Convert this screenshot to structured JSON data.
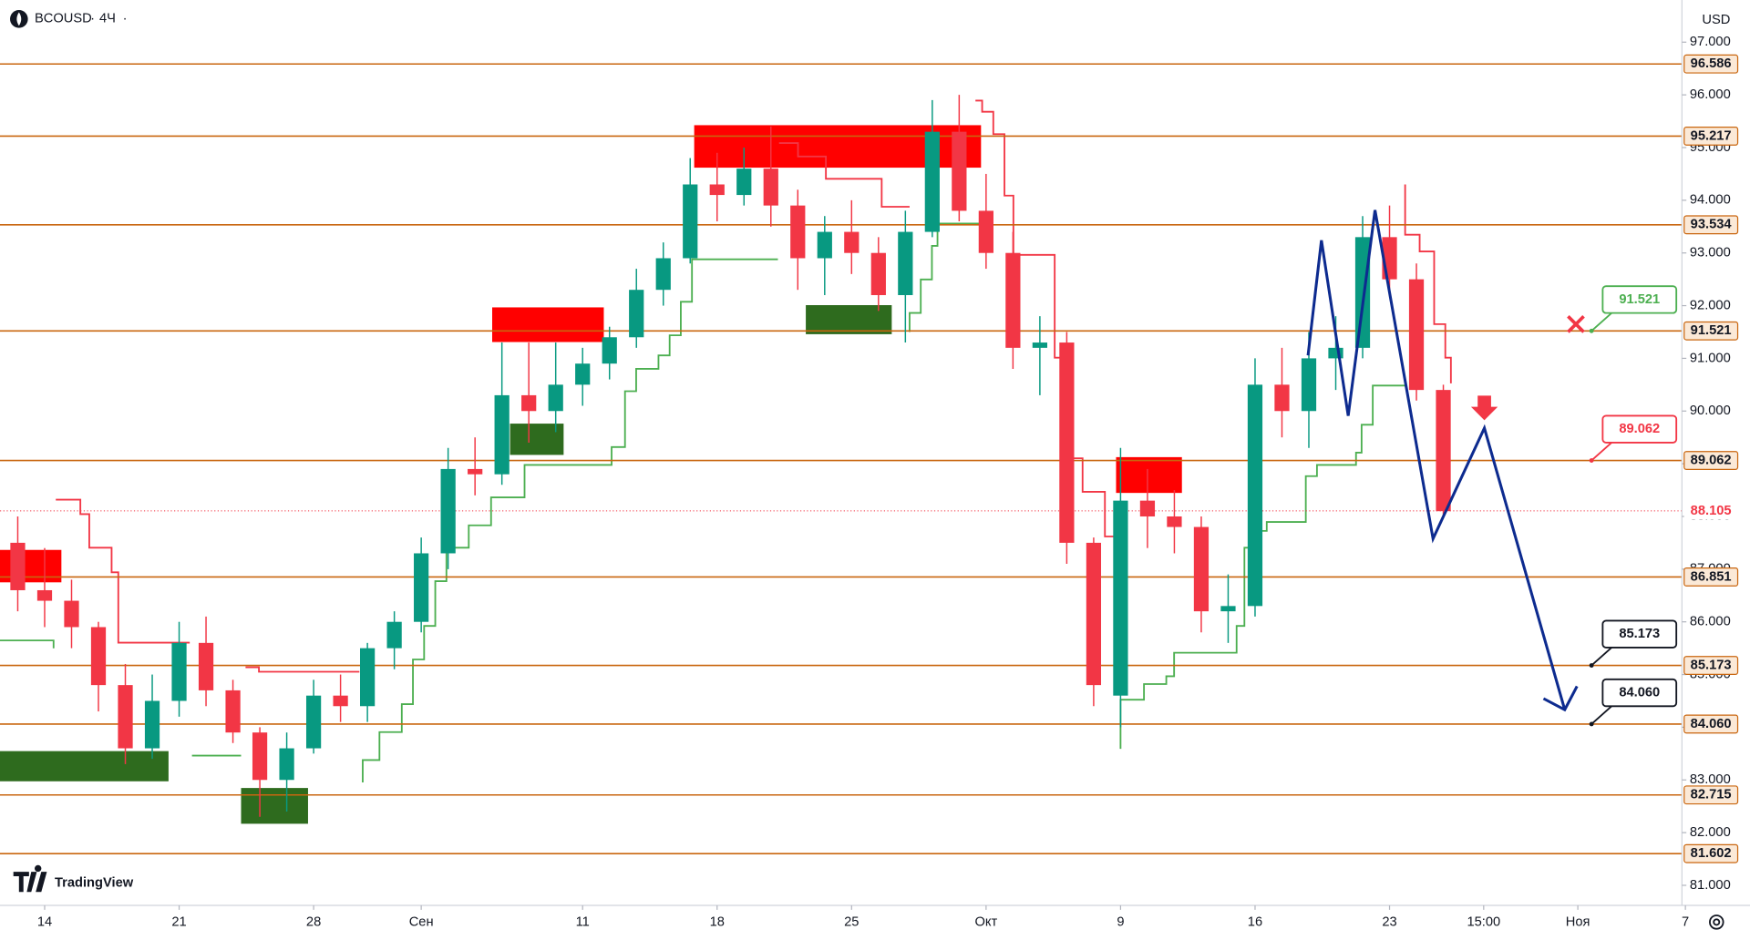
{
  "header": {
    "symbol": "BCOUSD",
    "interval": "4Ч",
    "currency": "USD",
    "brand": "TradingView"
  },
  "chart_data": {
    "type": "candlestick",
    "x": [
      -1,
      0,
      1,
      2,
      3,
      4,
      5,
      6,
      7,
      8,
      9,
      10,
      11,
      12,
      13,
      14,
      15,
      16,
      17,
      18,
      19,
      20,
      21,
      22,
      23,
      24,
      25,
      26,
      27,
      28,
      29,
      30,
      31,
      32,
      33,
      34,
      35,
      36,
      37,
      38,
      39,
      40,
      41,
      42,
      43,
      44,
      45,
      46,
      47,
      48,
      49,
      50,
      51,
      52
    ],
    "ohlc": [
      [
        87.5,
        88,
        86.2,
        86.6
      ],
      [
        86.6,
        87.4,
        85.9,
        86.4
      ],
      [
        86.4,
        86.8,
        85.5,
        85.9
      ],
      [
        85.9,
        86,
        84.3,
        84.8
      ],
      [
        84.8,
        85.2,
        83.3,
        83.6
      ],
      [
        83.6,
        85,
        83.4,
        84.5
      ],
      [
        84.5,
        86,
        84.2,
        85.6
      ],
      [
        85.6,
        86.1,
        84.4,
        84.7
      ],
      [
        84.7,
        84.9,
        83.7,
        83.9
      ],
      [
        83.9,
        84,
        82.3,
        83
      ],
      [
        83,
        83.9,
        82.4,
        83.6
      ],
      [
        83.6,
        84.9,
        83.5,
        84.6
      ],
      [
        84.6,
        85,
        84.1,
        84.4
      ],
      [
        84.4,
        85.6,
        84.1,
        85.5
      ],
      [
        85.5,
        86.2,
        85.1,
        86
      ],
      [
        86,
        87.6,
        85.8,
        87.3
      ],
      [
        87.3,
        89.3,
        87,
        88.9
      ],
      [
        88.9,
        89.5,
        88.4,
        88.8
      ],
      [
        88.8,
        91.3,
        88.6,
        90.3
      ],
      [
        90.3,
        91.3,
        89.4,
        90
      ],
      [
        90,
        91.3,
        89.6,
        90.5
      ],
      [
        90.5,
        91.2,
        90.1,
        90.9
      ],
      [
        90.9,
        91.6,
        90.6,
        91.4
      ],
      [
        91.4,
        92.7,
        91.2,
        92.3
      ],
      [
        92.3,
        93.2,
        92,
        92.9
      ],
      [
        92.9,
        94.8,
        92.8,
        94.3
      ],
      [
        94.3,
        94.9,
        93.6,
        94.1
      ],
      [
        94.1,
        95,
        93.9,
        94.6
      ],
      [
        94.6,
        95.4,
        93.5,
        93.9
      ],
      [
        93.9,
        94.2,
        92.3,
        92.9
      ],
      [
        92.9,
        93.7,
        92.2,
        93.4
      ],
      [
        93.4,
        94,
        92.6,
        93
      ],
      [
        93,
        93.3,
        91.9,
        92.2
      ],
      [
        92.2,
        93.8,
        91.3,
        93.4
      ],
      [
        93.4,
        95.9,
        93.3,
        95.3
      ],
      [
        95.3,
        96,
        93.6,
        93.8
      ],
      [
        93.8,
        94.5,
        92.7,
        93
      ],
      [
        93,
        93.4,
        90.8,
        91.2
      ],
      [
        91.2,
        91.8,
        90.3,
        91.3
      ],
      [
        91.3,
        91.5,
        87.1,
        87.5
      ],
      [
        87.5,
        87.6,
        84.4,
        84.8
      ],
      [
        84.6,
        89.3,
        84,
        88.3
      ],
      [
        88.3,
        88.9,
        87.4,
        88
      ],
      [
        88,
        88.5,
        87.3,
        87.8
      ],
      [
        87.8,
        88,
        85.8,
        86.2
      ],
      [
        86.2,
        86.9,
        85.6,
        86.3
      ],
      [
        86.3,
        91,
        86.1,
        90.5
      ],
      [
        90.5,
        91.2,
        89.5,
        90
      ],
      [
        90,
        91.5,
        89.3,
        91
      ],
      [
        91,
        91.8,
        90.4,
        91.2
      ],
      [
        91.2,
        93.7,
        91,
        93.3
      ],
      [
        93.3,
        93.9,
        92.3,
        92.5
      ],
      [
        92.5,
        92.8,
        90.2,
        90.4
      ],
      [
        90.4,
        90.5,
        88,
        88.1
      ]
    ],
    "up_color": "#089981",
    "down_color": "#f23645",
    "xlim": [
      -1.66,
      60.87
    ],
    "xticks": [
      {
        "value": 0,
        "label": "14"
      },
      {
        "value": 5,
        "label": "21"
      },
      {
        "value": 10,
        "label": "28"
      },
      {
        "value": 14,
        "label": "Сен"
      },
      {
        "value": 20,
        "label": "11"
      },
      {
        "value": 25,
        "label": "18"
      },
      {
        "value": 30,
        "label": "25"
      },
      {
        "value": 35,
        "label": "Окт"
      },
      {
        "value": 40,
        "label": "9"
      },
      {
        "value": 45,
        "label": "16"
      },
      {
        "value": 50,
        "label": "23"
      },
      {
        "value": 53.5,
        "label": "15:00"
      },
      {
        "value": 57,
        "label": "Ноя"
      },
      {
        "value": 61,
        "label": "7"
      }
    ],
    "ylim": [
      80.62,
      97.8
    ],
    "yticks": [
      {
        "value": 81,
        "label": "81.000"
      },
      {
        "value": 82,
        "label": "82.000"
      },
      {
        "value": 83,
        "label": "83.000"
      },
      {
        "value": 84,
        "label": "84.000"
      },
      {
        "value": 85,
        "label": "85.000"
      },
      {
        "value": 86,
        "label": "86.000"
      },
      {
        "value": 87,
        "label": "87.000"
      },
      {
        "value": 88,
        "label": "88.000"
      },
      {
        "value": 89,
        "label": "89.000"
      },
      {
        "value": 90,
        "label": "90.000"
      },
      {
        "value": 91,
        "label": "91.000"
      },
      {
        "value": 92,
        "label": "92.000"
      },
      {
        "value": 93,
        "label": "93.000"
      },
      {
        "value": 94,
        "label": "94.000"
      },
      {
        "value": 95,
        "label": "95.000"
      },
      {
        "value": 96,
        "label": "96.000"
      },
      {
        "value": 97,
        "label": "97.000"
      }
    ],
    "levels": [
      96.586,
      95.217,
      93.534,
      91.521,
      89.062,
      86.851,
      85.173,
      {
        "value": 84.06,
        "label": "84.060"
      },
      82.715,
      81.602
    ],
    "level_color": "#c9660f",
    "last_price": 88.105,
    "callouts": [
      {
        "value": 91.521,
        "color": "#4caf50"
      },
      {
        "value": 89.062,
        "color": "#f23645"
      },
      {
        "value": 85.173,
        "color": "#131722"
      },
      {
        "value": {
          "value": 84.06,
          "label": "84.060"
        },
        "color": "#131722"
      }
    ]
  }
}
